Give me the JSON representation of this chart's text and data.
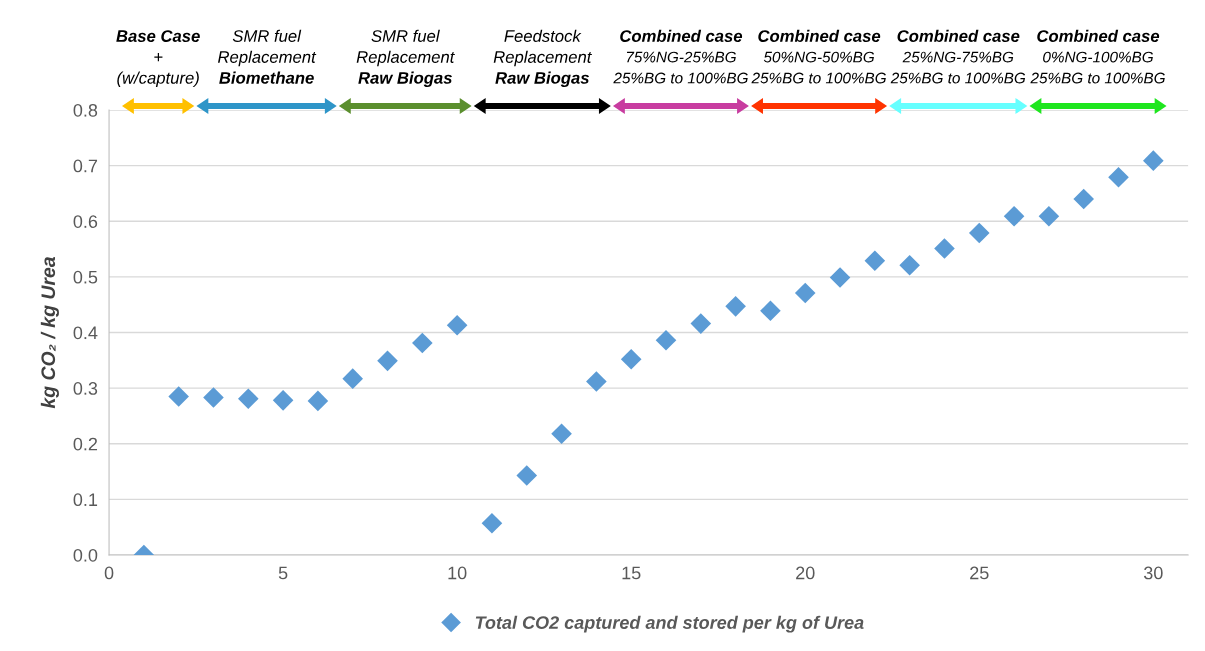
{
  "chart_data": {
    "type": "scatter",
    "ylabel": "kg CO₂ / kg Urea",
    "x": [
      1,
      2,
      3,
      4,
      5,
      6,
      7,
      8,
      9,
      10,
      11,
      12,
      13,
      14,
      15,
      16,
      17,
      18,
      19,
      20,
      21,
      22,
      23,
      24,
      25,
      26,
      27,
      28,
      29,
      30
    ],
    "series": [
      {
        "name": "Total CO2 captured and stored per kg of Urea",
        "color": "#5b9bd5",
        "values": [
          0.0,
          0.285,
          0.283,
          0.281,
          0.278,
          0.277,
          0.317,
          0.349,
          0.381,
          0.413,
          0.057,
          0.143,
          0.218,
          0.312,
          0.352,
          0.386,
          0.416,
          0.447,
          0.439,
          0.471,
          0.499,
          0.529,
          0.521,
          0.551,
          0.579,
          0.609,
          0.609,
          0.64,
          0.679,
          0.709
        ]
      }
    ],
    "xlim": [
      0,
      31
    ],
    "xticks": [
      0,
      5,
      10,
      15,
      20,
      25,
      30
    ],
    "ylim": [
      0,
      0.8
    ],
    "yticks": [
      {
        "value": 0,
        "label": "0.0"
      },
      {
        "value": 0.1,
        "label": "0.1"
      },
      {
        "value": 0.2,
        "label": "0.2"
      },
      {
        "value": 0.3,
        "label": "0.3"
      },
      {
        "value": 0.4,
        "label": "0.4"
      },
      {
        "value": 0.5,
        "label": "0.5"
      },
      {
        "value": 0.6,
        "label": "0.6"
      },
      {
        "value": 0.7,
        "label": "0.7"
      },
      {
        "value": 0.8,
        "label": "0.8"
      }
    ],
    "annotations": [
      "Base Case\n+\n(w/capture)",
      "SMR fuel\nReplacement\nBiomethane",
      "SMR fuel\nReplacement\nRaw Biogas",
      "Feedstock\nReplacement\nRaw Biogas",
      "Combined case\n75%NG-25%BG\n25%BG to 100%BG",
      "Combined case\n50%NG-50%BG\n25%BG to 100%BG",
      "Combined case\n25%NG-75%BG\n25%BG to 100%BG",
      "Combined case\n0%NG-100%BG\n25%BG to 100%BG"
    ],
    "grid": "y",
    "legend": "bottom",
    "marker": "diamond"
  }
}
